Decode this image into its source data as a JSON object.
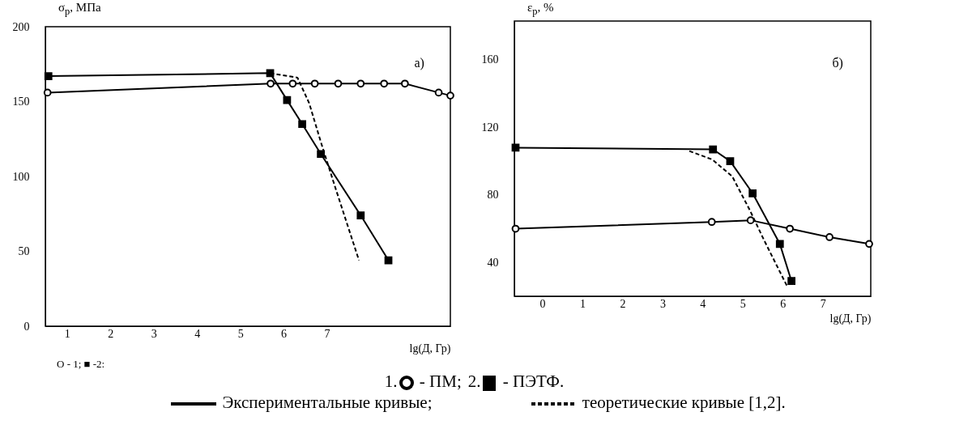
{
  "chart_data": [
    {
      "type": "line",
      "title": "а)",
      "ylabel": "σ$_{р}$, МПа",
      "xlabel": "lg(Д, Гр)",
      "xlim": [
        0.5,
        9.85
      ],
      "xticks": [
        1,
        2,
        3,
        4,
        5,
        6,
        7
      ],
      "ylim": [
        0,
        200
      ],
      "yticks": [
        0,
        50,
        100,
        150,
        200
      ],
      "grid": false,
      "legend": false,
      "annotations": [
        "O - 1; ■ -2:"
      ],
      "series": [
        {
          "color": "#000000",
          "marker": "circle",
          "line_style": "solid",
          "x": [
            0.55,
            5.7,
            6.21,
            6.72,
            7.26,
            7.78,
            8.32,
            8.8,
            9.58,
            9.85
          ],
          "values": [
            156,
            162,
            162,
            162,
            162,
            162,
            162,
            162,
            156,
            154
          ]
        },
        {
          "color": "#000000",
          "marker": "square",
          "line_style": "solid",
          "x": [
            0.57,
            5.69,
            6.08,
            6.43,
            6.86,
            7.78,
            8.42
          ],
          "values": [
            167,
            169,
            151,
            135,
            115,
            74,
            44
          ]
        },
        {
          "color": "#000000",
          "marker": "none",
          "line_style": "dashed",
          "x": [
            5.69,
            6.32,
            6.59,
            6.86,
            7.2,
            7.74
          ],
          "values": [
            169,
            166,
            149,
            123,
            92,
            44
          ]
        }
      ]
    },
    {
      "type": "line",
      "title": "б)",
      "ylabel": "ε$_{р}$, %",
      "xlabel": "lg(Д, Гр)",
      "xlim": [
        -0.7,
        8.2
      ],
      "xticks": [
        0,
        1,
        2,
        3,
        4,
        5,
        6,
        7
      ],
      "ylim": [
        20,
        183
      ],
      "yticks": [
        40,
        80,
        120,
        160
      ],
      "grid": false,
      "legend": "bottom",
      "annotations": [
        "Экспериментальные кривые;"
      ],
      "series": [
        {
          "name": "1. - ПМ;",
          "color": "#000000",
          "marker": "circle",
          "line_style": "solid",
          "x": [
            -0.67,
            4.23,
            5.2,
            6.18,
            7.17,
            8.16
          ],
          "values": [
            60,
            64,
            65,
            60,
            55,
            51
          ]
        },
        {
          "name": "2. - ПЭТФ.",
          "color": "#000000",
          "marker": "square",
          "line_style": "solid",
          "x": [
            -0.67,
            4.26,
            4.69,
            5.25,
            5.93,
            6.22
          ],
          "values": [
            108,
            107,
            100,
            81,
            51,
            29
          ]
        },
        {
          "name": "теоретические кривые [1,2].",
          "color": "#000000",
          "marker": "none",
          "line_style": "dashed",
          "x": [
            3.67,
            4.24,
            4.74,
            5.18,
            5.54,
            6.11
          ],
          "values": [
            106,
            101,
            91,
            71,
            53,
            26
          ]
        }
      ]
    }
  ]
}
